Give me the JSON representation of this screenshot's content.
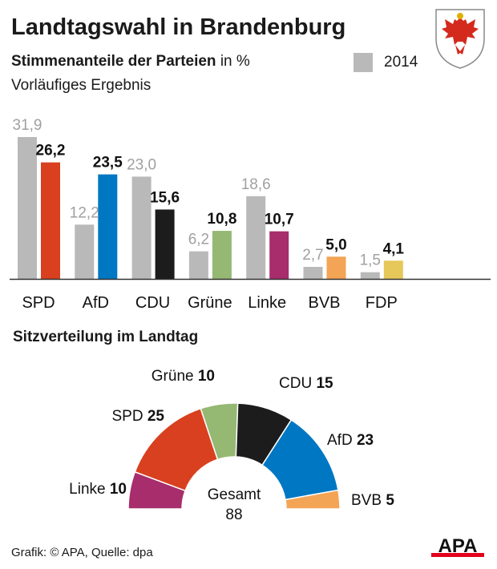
{
  "title": "Landtagswahl in Brandenburg",
  "subtitle_bold": "Stimmenanteile der Parteien",
  "subtitle_unit": "in %",
  "note": "Vorläufiges Ergebnis",
  "legend_previous": "2014",
  "seat_title": "Sitzverteilung im Landtag",
  "source": "Grafik: © APA, Quelle: dpa",
  "logo": "APA",
  "chart_data": [
    {
      "type": "bar",
      "categories": [
        "SPD",
        "AfD",
        "CDU",
        "Grüne",
        "Linke",
        "BVB",
        "FDP"
      ],
      "series": [
        {
          "name": "2014",
          "values": [
            31.9,
            12.2,
            23.0,
            6.2,
            18.6,
            2.7,
            1.5
          ],
          "labels": [
            "31,9",
            "12,2",
            "23,0",
            "6,2",
            "18,6",
            "2,7",
            "1,5"
          ],
          "color": "#b9b9b9"
        },
        {
          "values": [
            26.2,
            23.5,
            15.6,
            10.8,
            10.7,
            5.0,
            4.1
          ],
          "labels": [
            "26,2",
            "23,5",
            "15,6",
            "10,8",
            "10,7",
            "5,0",
            "4,1"
          ],
          "colors": [
            "#d9401f",
            "#0077c2",
            "#1c1c1c",
            "#95b873",
            "#a72d6c",
            "#f3a455",
            "#e6c75a"
          ]
        }
      ],
      "ylim": [
        0,
        31.9
      ]
    },
    {
      "type": "pie",
      "variant": "semicircle",
      "parties": [
        {
          "name": "Linke",
          "seats": 10,
          "color": "#a72d6c"
        },
        {
          "name": "SPD",
          "seats": 25,
          "color": "#d9401f"
        },
        {
          "name": "Grüne",
          "seats": 10,
          "color": "#95b873"
        },
        {
          "name": "CDU",
          "seats": 15,
          "color": "#1c1c1c"
        },
        {
          "name": "AfD",
          "seats": 23,
          "color": "#0077c2"
        },
        {
          "name": "BVB",
          "seats": 5,
          "color": "#f3a455"
        }
      ],
      "total_label": "Gesamt",
      "total": "88"
    }
  ]
}
